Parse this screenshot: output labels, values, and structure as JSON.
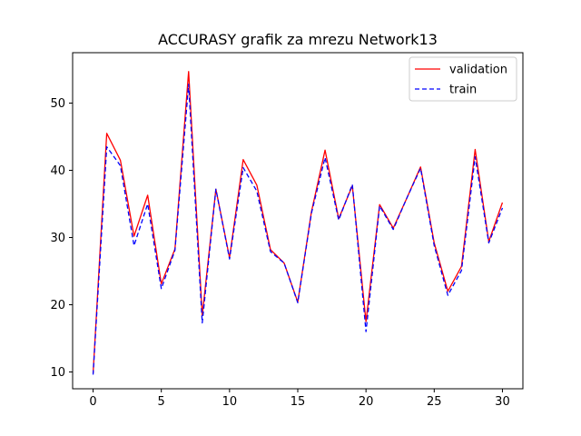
{
  "chart_data": {
    "type": "line",
    "title": "ACCURASY grafik za mrezu Network13",
    "xlabel": "",
    "ylabel": "",
    "xlim": [
      -1.5,
      31.5
    ],
    "ylim": [
      7.5,
      57.5
    ],
    "xticks": [
      0,
      5,
      10,
      15,
      20,
      25,
      30
    ],
    "yticks": [
      10,
      20,
      30,
      40,
      50
    ],
    "grid": false,
    "legend_position": "top-right",
    "x": [
      0,
      1,
      2,
      3,
      4,
      5,
      6,
      7,
      8,
      9,
      10,
      11,
      12,
      13,
      14,
      15,
      16,
      17,
      18,
      19,
      20,
      21,
      22,
      23,
      24,
      25,
      26,
      27,
      28,
      29,
      30
    ],
    "series": [
      {
        "name": "validation",
        "color": "#ff0000",
        "style": "solid",
        "values": [
          9.8,
          45.5,
          41.5,
          30.2,
          36.3,
          23.1,
          28.3,
          54.7,
          18.4,
          37.2,
          27.0,
          41.6,
          37.8,
          28.2,
          26.2,
          20.4,
          33.8,
          43.0,
          32.8,
          37.7,
          17.5,
          34.9,
          31.4,
          35.9,
          40.5,
          29.2,
          22.0,
          25.7,
          43.1,
          29.4,
          35.2
        ]
      },
      {
        "name": "train",
        "color": "#0000ff",
        "style": "dashed",
        "values": [
          9.6,
          43.5,
          40.7,
          28.8,
          35.0,
          22.4,
          28.1,
          52.8,
          17.3,
          37.2,
          26.8,
          40.4,
          36.9,
          27.9,
          26.2,
          20.3,
          33.6,
          41.9,
          32.6,
          37.9,
          16.0,
          34.7,
          31.2,
          35.9,
          40.3,
          28.8,
          21.4,
          25.1,
          42.0,
          29.2,
          34.4
        ]
      }
    ]
  }
}
